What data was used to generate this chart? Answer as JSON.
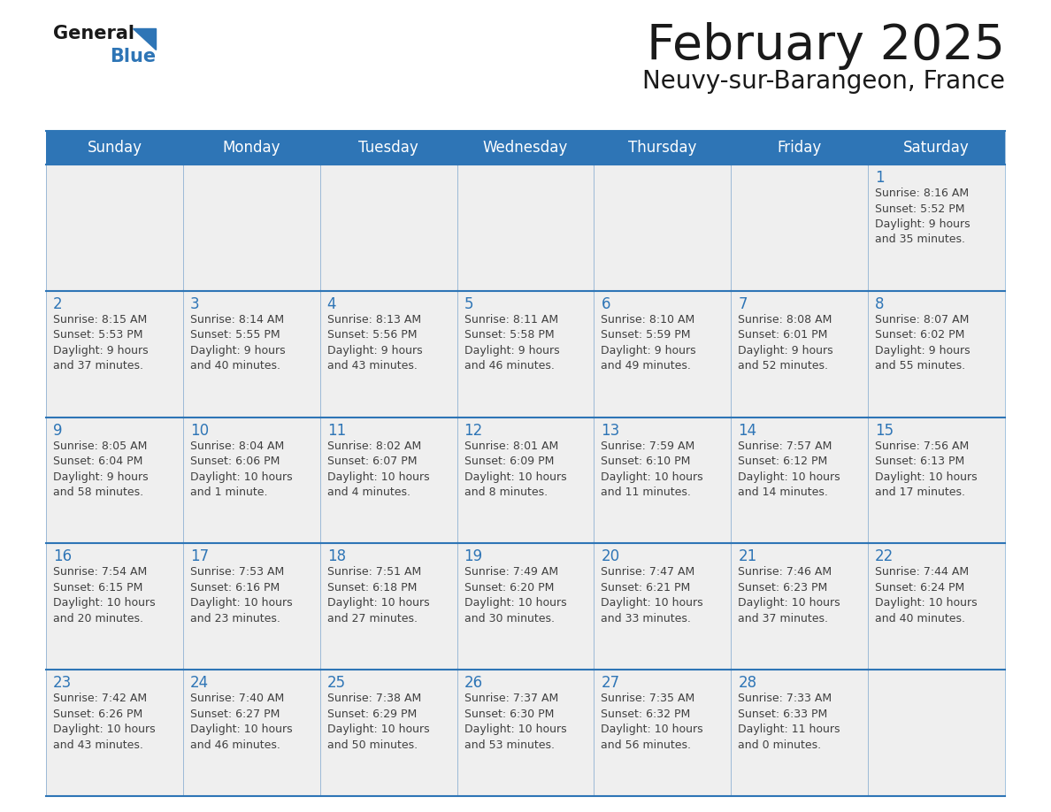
{
  "title": "February 2025",
  "subtitle": "Neuvy-sur-Barangeon, France",
  "days_of_week": [
    "Sunday",
    "Monday",
    "Tuesday",
    "Wednesday",
    "Thursday",
    "Friday",
    "Saturday"
  ],
  "header_bg": "#2E75B6",
  "header_text": "#FFFFFF",
  "cell_bg": "#EFEFEF",
  "border_color": "#2E75B6",
  "day_num_color": "#2E75B6",
  "text_color": "#404040",
  "logo_general_color": "#1a1a1a",
  "logo_blue_color": "#2E75B6",
  "calendar_data": [
    [
      {
        "day": null,
        "info": ""
      },
      {
        "day": null,
        "info": ""
      },
      {
        "day": null,
        "info": ""
      },
      {
        "day": null,
        "info": ""
      },
      {
        "day": null,
        "info": ""
      },
      {
        "day": null,
        "info": ""
      },
      {
        "day": 1,
        "info": "Sunrise: 8:16 AM\nSunset: 5:52 PM\nDaylight: 9 hours\nand 35 minutes."
      }
    ],
    [
      {
        "day": 2,
        "info": "Sunrise: 8:15 AM\nSunset: 5:53 PM\nDaylight: 9 hours\nand 37 minutes."
      },
      {
        "day": 3,
        "info": "Sunrise: 8:14 AM\nSunset: 5:55 PM\nDaylight: 9 hours\nand 40 minutes."
      },
      {
        "day": 4,
        "info": "Sunrise: 8:13 AM\nSunset: 5:56 PM\nDaylight: 9 hours\nand 43 minutes."
      },
      {
        "day": 5,
        "info": "Sunrise: 8:11 AM\nSunset: 5:58 PM\nDaylight: 9 hours\nand 46 minutes."
      },
      {
        "day": 6,
        "info": "Sunrise: 8:10 AM\nSunset: 5:59 PM\nDaylight: 9 hours\nand 49 minutes."
      },
      {
        "day": 7,
        "info": "Sunrise: 8:08 AM\nSunset: 6:01 PM\nDaylight: 9 hours\nand 52 minutes."
      },
      {
        "day": 8,
        "info": "Sunrise: 8:07 AM\nSunset: 6:02 PM\nDaylight: 9 hours\nand 55 minutes."
      }
    ],
    [
      {
        "day": 9,
        "info": "Sunrise: 8:05 AM\nSunset: 6:04 PM\nDaylight: 9 hours\nand 58 minutes."
      },
      {
        "day": 10,
        "info": "Sunrise: 8:04 AM\nSunset: 6:06 PM\nDaylight: 10 hours\nand 1 minute."
      },
      {
        "day": 11,
        "info": "Sunrise: 8:02 AM\nSunset: 6:07 PM\nDaylight: 10 hours\nand 4 minutes."
      },
      {
        "day": 12,
        "info": "Sunrise: 8:01 AM\nSunset: 6:09 PM\nDaylight: 10 hours\nand 8 minutes."
      },
      {
        "day": 13,
        "info": "Sunrise: 7:59 AM\nSunset: 6:10 PM\nDaylight: 10 hours\nand 11 minutes."
      },
      {
        "day": 14,
        "info": "Sunrise: 7:57 AM\nSunset: 6:12 PM\nDaylight: 10 hours\nand 14 minutes."
      },
      {
        "day": 15,
        "info": "Sunrise: 7:56 AM\nSunset: 6:13 PM\nDaylight: 10 hours\nand 17 minutes."
      }
    ],
    [
      {
        "day": 16,
        "info": "Sunrise: 7:54 AM\nSunset: 6:15 PM\nDaylight: 10 hours\nand 20 minutes."
      },
      {
        "day": 17,
        "info": "Sunrise: 7:53 AM\nSunset: 6:16 PM\nDaylight: 10 hours\nand 23 minutes."
      },
      {
        "day": 18,
        "info": "Sunrise: 7:51 AM\nSunset: 6:18 PM\nDaylight: 10 hours\nand 27 minutes."
      },
      {
        "day": 19,
        "info": "Sunrise: 7:49 AM\nSunset: 6:20 PM\nDaylight: 10 hours\nand 30 minutes."
      },
      {
        "day": 20,
        "info": "Sunrise: 7:47 AM\nSunset: 6:21 PM\nDaylight: 10 hours\nand 33 minutes."
      },
      {
        "day": 21,
        "info": "Sunrise: 7:46 AM\nSunset: 6:23 PM\nDaylight: 10 hours\nand 37 minutes."
      },
      {
        "day": 22,
        "info": "Sunrise: 7:44 AM\nSunset: 6:24 PM\nDaylight: 10 hours\nand 40 minutes."
      }
    ],
    [
      {
        "day": 23,
        "info": "Sunrise: 7:42 AM\nSunset: 6:26 PM\nDaylight: 10 hours\nand 43 minutes."
      },
      {
        "day": 24,
        "info": "Sunrise: 7:40 AM\nSunset: 6:27 PM\nDaylight: 10 hours\nand 46 minutes."
      },
      {
        "day": 25,
        "info": "Sunrise: 7:38 AM\nSunset: 6:29 PM\nDaylight: 10 hours\nand 50 minutes."
      },
      {
        "day": 26,
        "info": "Sunrise: 7:37 AM\nSunset: 6:30 PM\nDaylight: 10 hours\nand 53 minutes."
      },
      {
        "day": 27,
        "info": "Sunrise: 7:35 AM\nSunset: 6:32 PM\nDaylight: 10 hours\nand 56 minutes."
      },
      {
        "day": 28,
        "info": "Sunrise: 7:33 AM\nSunset: 6:33 PM\nDaylight: 11 hours\nand 0 minutes."
      },
      {
        "day": null,
        "info": ""
      }
    ]
  ]
}
